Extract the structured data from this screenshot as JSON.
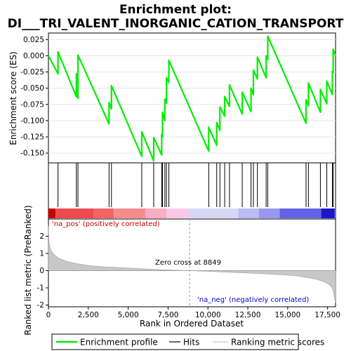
{
  "chart_data": {
    "type": "line",
    "title_line1": "Enrichment plot:",
    "title_line2": "DI___TRI_VALENT_INORGANIC_CATION_TRANSPORT",
    "es_ylabel": "Enrichment score (ES)",
    "metric_ylabel": "Ranked list metric (PreRanked)",
    "xlabel": "Rank in Ordered Dataset",
    "xlim": [
      0,
      18000
    ],
    "es_ylim": [
      -0.165,
      0.035
    ],
    "metric_ylim": [
      -2.1,
      3.0
    ],
    "x_ticks": [
      {
        "value": 0,
        "label": "0"
      },
      {
        "value": 2500,
        "label": "2,500"
      },
      {
        "value": 5000,
        "label": "5,000"
      },
      {
        "value": 7500,
        "label": "7,500"
      },
      {
        "value": 10000,
        "label": "10,000"
      },
      {
        "value": 12500,
        "label": "12,500"
      },
      {
        "value": 15000,
        "label": "15,000"
      },
      {
        "value": 17500,
        "label": "17,500"
      }
    ],
    "es_ticks": [
      {
        "value": 0.025,
        "label": "0.025"
      },
      {
        "value": 0.0,
        "label": "0.000"
      },
      {
        "value": -0.025,
        "label": "-0.025"
      },
      {
        "value": -0.05,
        "label": "-0.050"
      },
      {
        "value": -0.075,
        "label": "-0.075"
      },
      {
        "value": -0.1,
        "label": "-0.100"
      },
      {
        "value": -0.125,
        "label": "-0.125"
      },
      {
        "value": -0.15,
        "label": "-0.150"
      }
    ],
    "metric_ticks": [
      {
        "value": 2,
        "label": "2"
      },
      {
        "value": 1,
        "label": "1"
      },
      {
        "value": 0,
        "label": "0"
      },
      {
        "value": -1,
        "label": "-1"
      },
      {
        "value": -2,
        "label": "-2"
      }
    ],
    "hits": [
      600,
      1750,
      1850,
      3800,
      3950,
      5850,
      6600,
      7100,
      7150,
      7300,
      7400,
      7550,
      10050,
      10550,
      10750,
      11050,
      11350,
      12150,
      12700,
      12850,
      13100,
      13650,
      13750,
      16150,
      16300,
      17050,
      17450,
      17800,
      17850
    ],
    "series": [
      {
        "name": "Enrichment profile",
        "color": "#00ee00",
        "x": [
          0,
          600,
          600,
          1750,
          1750,
          1850,
          1850,
          3800,
          3800,
          3950,
          3950,
          5850,
          5850,
          6600,
          6600,
          7100,
          7100,
          7150,
          7150,
          7300,
          7300,
          7400,
          7400,
          7550,
          7550,
          10050,
          10050,
          10550,
          10550,
          10750,
          10750,
          11050,
          11050,
          11350,
          11350,
          12150,
          12150,
          12700,
          12700,
          12850,
          12850,
          13100,
          13100,
          13650,
          13650,
          13750,
          13750,
          16150,
          16150,
          16300,
          16300,
          17050,
          17050,
          17450,
          17450,
          17800,
          17800,
          17850,
          17850,
          18000
        ],
        "y": [
          0.0,
          -0.028,
          0.006,
          -0.063,
          -0.028,
          -0.066,
          0.001,
          -0.105,
          -0.072,
          -0.082,
          -0.046,
          -0.155,
          -0.117,
          -0.162,
          -0.126,
          -0.153,
          -0.121,
          -0.125,
          -0.087,
          -0.1,
          -0.067,
          -0.073,
          -0.034,
          -0.041,
          -0.007,
          -0.147,
          -0.11,
          -0.138,
          -0.103,
          -0.115,
          -0.079,
          -0.093,
          -0.063,
          -0.078,
          -0.045,
          -0.09,
          -0.056,
          -0.086,
          -0.05,
          -0.06,
          -0.022,
          -0.036,
          -0.002,
          -0.034,
          0.0,
          -0.006,
          0.03,
          -0.104,
          -0.068,
          -0.077,
          -0.042,
          -0.087,
          -0.052,
          -0.074,
          -0.039,
          -0.06,
          -0.024,
          -0.026,
          0.01,
          0.0
        ]
      }
    ],
    "metric_curve": {
      "x": [
        0,
        30,
        80,
        150,
        250,
        400,
        600,
        900,
        1300,
        1800,
        2500,
        3500,
        5000,
        6500,
        7500,
        8849,
        10000,
        11500,
        13000,
        14500,
        15500,
        16200,
        16800,
        17200,
        17500,
        17700,
        17800,
        17880,
        17950,
        18000
      ],
      "y": [
        2.6,
        1.7,
        1.4,
        1.2,
        1.05,
        0.9,
        0.75,
        0.62,
        0.5,
        0.4,
        0.3,
        0.22,
        0.15,
        0.08,
        0.04,
        0.0,
        -0.04,
        -0.1,
        -0.16,
        -0.23,
        -0.3,
        -0.4,
        -0.5,
        -0.62,
        -0.75,
        -0.9,
        -1.05,
        -1.3,
        -1.7,
        -1.85
      ]
    },
    "zero_cross": 8849,
    "zero_cross_label": "Zero cross at 8849",
    "pos_label": "'na_pos' (positively correlated)",
    "neg_label": "'na_neg' (negatively correlated)",
    "pos_color": "#cc0000",
    "neg_color": "#0000cc",
    "heat_segments": [
      {
        "x0": 0,
        "x1": 450,
        "color": "#cc0000"
      },
      {
        "x0": 450,
        "x1": 2850,
        "color": "#ec4a4e"
      },
      {
        "x0": 2850,
        "x1": 4100,
        "color": "#f26466"
      },
      {
        "x0": 4100,
        "x1": 6100,
        "color": "#f58d8f"
      },
      {
        "x0": 6100,
        "x1": 7400,
        "color": "#f8aebf"
      },
      {
        "x0": 7400,
        "x1": 8850,
        "color": "#f9c9e6"
      },
      {
        "x0": 8850,
        "x1": 11900,
        "color": "#d8d8f6"
      },
      {
        "x0": 11900,
        "x1": 13200,
        "color": "#bbbbf4"
      },
      {
        "x0": 13200,
        "x1": 14500,
        "color": "#9898ef"
      },
      {
        "x0": 14500,
        "x1": 17100,
        "color": "#6363e6"
      },
      {
        "x0": 17100,
        "x1": 17950,
        "color": "#1e16c8"
      }
    ],
    "legend": [
      {
        "label": "Enrichment profile",
        "color": "#00ee00",
        "kind": "thick"
      },
      {
        "label": "Hits",
        "color": "#000000",
        "kind": "thin"
      },
      {
        "label": "Ranking metric scores",
        "color": "#c8c8c8",
        "kind": "thin"
      }
    ]
  }
}
